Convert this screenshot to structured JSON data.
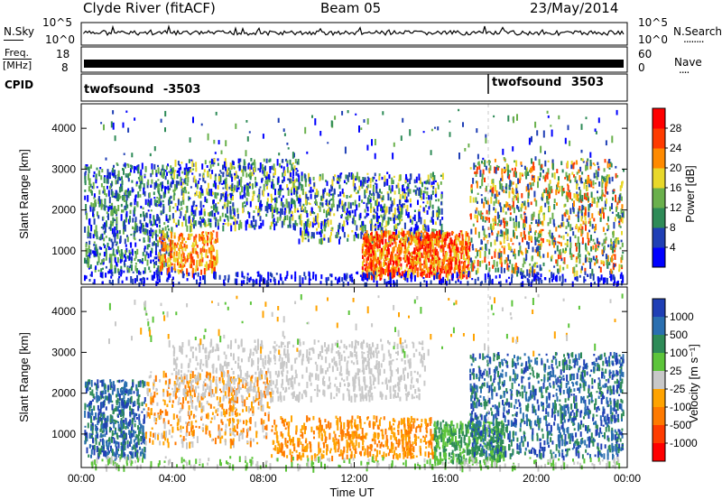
{
  "header": {
    "station": "Clyde River (fitACF)",
    "beam": "Beam 05",
    "date": "23/May/2014"
  },
  "noise_panel": {
    "left_label": "N.Sky",
    "left_ticks": [
      "10^5",
      "10^0"
    ],
    "right_ticks": [
      "10^5",
      "10^0"
    ],
    "right_label": "N.Search",
    "right_legend_dots": "........"
  },
  "freq_panel": {
    "left_label_line1": "Freq.",
    "left_label_line2": "[MHz]",
    "left_ticks": [
      "18",
      "8"
    ],
    "right_ticks": [
      "60",
      "0"
    ],
    "right_label": "Nave",
    "right_legend_dots": "...."
  },
  "cpid_panel": {
    "label": "CPID",
    "modes": [
      {
        "name": "twofsound",
        "cpid": "-3503"
      },
      {
        "name": "twofsound",
        "cpid": "3503"
      }
    ]
  },
  "chart_data": [
    {
      "type": "heatmap",
      "name": "power",
      "ylabel": "Slant Range [km]",
      "yticks": [
        1000,
        2000,
        3000,
        4000
      ],
      "ylim": [
        180,
        4600
      ],
      "xlim": [
        0,
        24
      ],
      "colorbar": {
        "label": "Power [dB]",
        "ticks": [
          4,
          8,
          12,
          16,
          20,
          24,
          28
        ],
        "colors": [
          "#0000ff",
          "#1f3fb5",
          "#2e8b57",
          "#6ab04c",
          "#e8d82a",
          "#ff8a00",
          "#ff3b00",
          "#ff0000"
        ]
      }
    },
    {
      "type": "heatmap",
      "name": "velocity",
      "ylabel": "Slant Range [km]",
      "yticks": [
        1000,
        2000,
        3000,
        4000
      ],
      "ylim": [
        180,
        4600
      ],
      "xlim": [
        0,
        24
      ],
      "xticks": [
        "00:00",
        "04:00",
        "08:00",
        "12:00",
        "16:00",
        "20:00",
        "00:00"
      ],
      "xlabel": "Time UT",
      "colorbar": {
        "label": "Velocity [m s⁻¹]",
        "ticks": [
          1000,
          500,
          100,
          25,
          -25,
          -100,
          -500,
          -1000
        ],
        "colors": [
          "#1f3fb5",
          "#2a6fb0",
          "#2e8b57",
          "#5cc43a",
          "#c8c8c8",
          "#ffa300",
          "#ff7a00",
          "#ff3c00",
          "#ff0000"
        ]
      }
    }
  ],
  "colors": {
    "axis": "#000000",
    "cpid_switch": "#000000"
  }
}
